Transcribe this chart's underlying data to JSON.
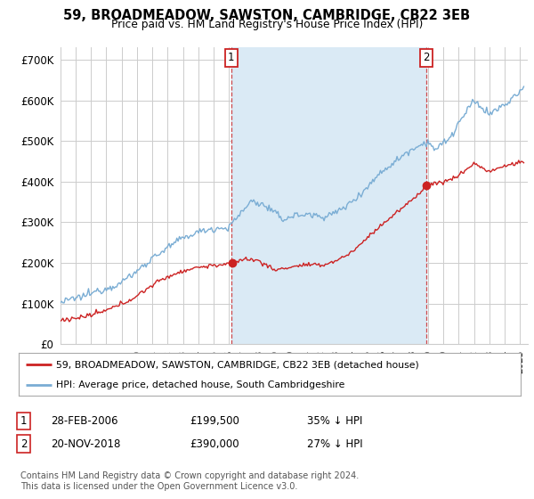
{
  "title": "59, BROADMEADOW, SAWSTON, CAMBRIDGE, CB22 3EB",
  "subtitle": "Price paid vs. HM Land Registry's House Price Index (HPI)",
  "ylabel_ticks": [
    "£0",
    "£100K",
    "£200K",
    "£300K",
    "£400K",
    "£500K",
    "£600K",
    "£700K"
  ],
  "ytick_vals": [
    0,
    100000,
    200000,
    300000,
    400000,
    500000,
    600000,
    700000
  ],
  "ylim": [
    0,
    730000
  ],
  "xlim_start": 1995.0,
  "xlim_end": 2025.5,
  "hpi_color": "#7aadd4",
  "hpi_fill_color": "#daeaf5",
  "price_color": "#cc2222",
  "marker1_date": 2006.16,
  "marker2_date": 2018.9,
  "marker1_price": 199500,
  "marker2_price": 390000,
  "legend_line1": "59, BROADMEADOW, SAWSTON, CAMBRIDGE, CB22 3EB (detached house)",
  "legend_line2": "HPI: Average price, detached house, South Cambridgeshire",
  "footer": "Contains HM Land Registry data © Crown copyright and database right 2024.\nThis data is licensed under the Open Government Licence v3.0.",
  "background_color": "#ffffff",
  "grid_color": "#cccccc"
}
